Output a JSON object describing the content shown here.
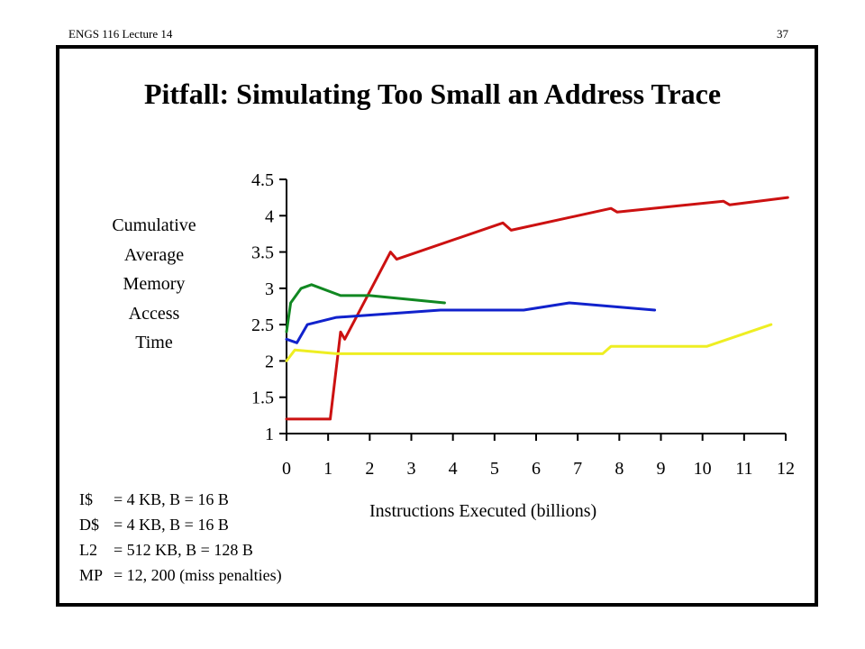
{
  "header": {
    "course": "ENGS 116  Lecture 14",
    "page_number": "37"
  },
  "slide": {
    "title": "Pitfall:  Simulating Too Small an Address Trace"
  },
  "notes": [
    {
      "key": "I$",
      "value": "= 4 KB, B = 16 B"
    },
    {
      "key": "D$",
      "value": "= 4 KB, B = 16 B"
    },
    {
      "key": "L2",
      "value": "= 512 KB, B = 128 B"
    },
    {
      "key": "MP",
      "value": "= 12, 200  (miss penalties)"
    }
  ],
  "chart_data": {
    "type": "line",
    "title": "",
    "xlabel": "Instructions Executed (billions)",
    "ylabel_lines": [
      "Cumulative",
      "Average",
      "Memory",
      "Access",
      "Time"
    ],
    "xlim": [
      0,
      12
    ],
    "ylim": [
      1,
      4.5
    ],
    "x_ticks": [
      0,
      1,
      2,
      3,
      4,
      5,
      6,
      7,
      8,
      9,
      10,
      11,
      12
    ],
    "x_tick_labels": [
      "0",
      "1",
      "2",
      "3",
      "4",
      "5",
      "6",
      "7",
      "8",
      "9",
      "10",
      "11",
      "12"
    ],
    "y_ticks": [
      1,
      1.5,
      2,
      2.5,
      3,
      3.5,
      4,
      4.5
    ],
    "y_tick_labels": [
      "1",
      "1.5",
      "2",
      "2.5",
      "3",
      "3.5",
      "4",
      "4.5"
    ],
    "grid": false,
    "legend": "none",
    "series": [
      {
        "color": "#cc1111",
        "points": [
          [
            0.0,
            1.2
          ],
          [
            1.05,
            1.2
          ],
          [
            1.3,
            2.4
          ],
          [
            1.4,
            2.3
          ],
          [
            2.5,
            3.5
          ],
          [
            2.65,
            3.4
          ],
          [
            5.2,
            3.9
          ],
          [
            5.4,
            3.8
          ],
          [
            7.8,
            4.1
          ],
          [
            7.95,
            4.05
          ],
          [
            10.5,
            4.2
          ],
          [
            10.65,
            4.15
          ],
          [
            12.05,
            4.25
          ]
        ]
      },
      {
        "color": "#118822",
        "points": [
          [
            0.0,
            2.4
          ],
          [
            0.1,
            2.8
          ],
          [
            0.35,
            3.0
          ],
          [
            0.6,
            3.05
          ],
          [
            1.3,
            2.9
          ],
          [
            2.0,
            2.9
          ],
          [
            3.8,
            2.8
          ]
        ]
      },
      {
        "color": "#1122cc",
        "points": [
          [
            0.0,
            2.3
          ],
          [
            0.25,
            2.25
          ],
          [
            0.5,
            2.5
          ],
          [
            1.2,
            2.6
          ],
          [
            3.7,
            2.7
          ],
          [
            5.7,
            2.7
          ],
          [
            6.8,
            2.8
          ],
          [
            8.85,
            2.7
          ]
        ]
      },
      {
        "color": "#eeee22",
        "points": [
          [
            0.0,
            2.0
          ],
          [
            0.2,
            2.15
          ],
          [
            1.2,
            2.1
          ],
          [
            7.6,
            2.1
          ],
          [
            7.8,
            2.2
          ],
          [
            10.1,
            2.2
          ],
          [
            11.65,
            2.5
          ]
        ]
      }
    ]
  }
}
